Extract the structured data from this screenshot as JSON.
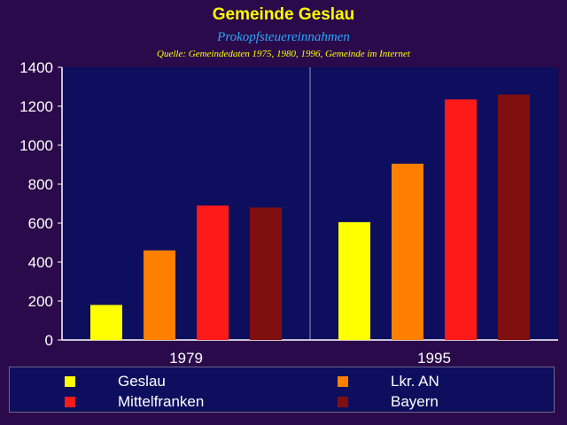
{
  "title": "Gemeinde Geslau",
  "subtitle": "Prokopfsteuereinnahmen",
  "source": "Quelle: Gemeindedaten 1975, 1980, 1996, Gemeinde im Internet",
  "colors": {
    "background": "#2a0a4a",
    "plot_area": "#0e0e5e",
    "title": "#ffff00",
    "subtitle": "#2aa8ff"
  },
  "chart_data": {
    "type": "bar",
    "categories": [
      "1979",
      "1995"
    ],
    "series": [
      {
        "name": "Geslau",
        "color": "#ffff00",
        "values": [
          180,
          605
        ]
      },
      {
        "name": "Lkr. AN",
        "color": "#ff8000",
        "values": [
          460,
          905
        ]
      },
      {
        "name": "Mittelfranken",
        "color": "#ff1a1a",
        "values": [
          690,
          1235
        ]
      },
      {
        "name": "Bayern",
        "color": "#801010",
        "values": [
          680,
          1260
        ]
      }
    ],
    "xlabel": "",
    "ylabel": "",
    "ylim": [
      0,
      1400
    ],
    "yticks": [
      "0",
      "200",
      "400",
      "600",
      "800",
      "1000",
      "1200",
      "1400"
    ],
    "grid": false,
    "legend": "bottom"
  }
}
